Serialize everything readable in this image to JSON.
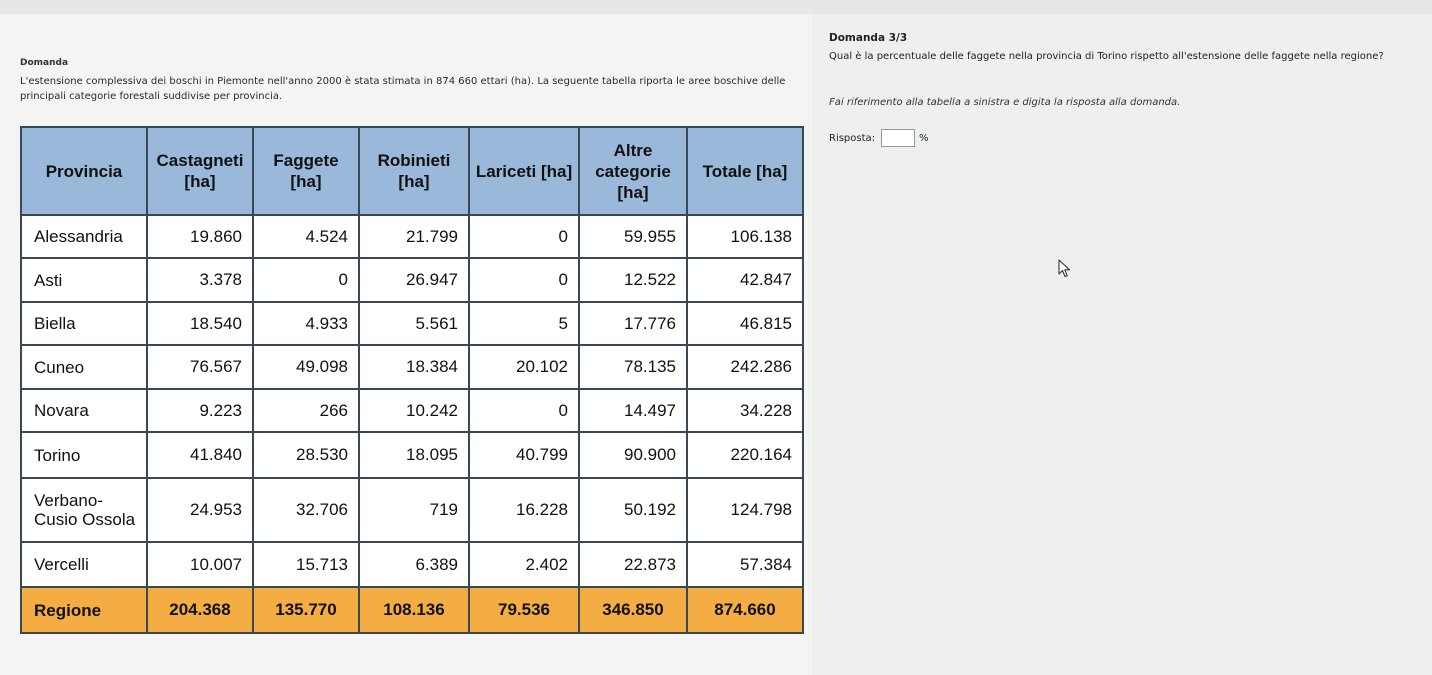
{
  "left": {
    "label": "Domanda",
    "intro": "L'estensione complessiva dei boschi in Piemonte nell'anno 2000 è stata stimata in  874 660 ettari (ha). La seguente tabella riporta le aree boschive delle principali categorie forestali suddivise per provincia.",
    "table": {
      "headers": [
        "Provincia",
        "Castagneti [ha]",
        "Faggete [ha]",
        "Robinieti [ha]",
        "Lariceti [ha]",
        "Altre categorie [ha]",
        "Totale [ha]"
      ],
      "rows": [
        [
          "Alessandria",
          "19.860",
          "4.524",
          "21.799",
          "0",
          "59.955",
          "106.138"
        ],
        [
          "Asti",
          "3.378",
          "0",
          "26.947",
          "0",
          "12.522",
          "42.847"
        ],
        [
          "Biella",
          "18.540",
          "4.933",
          "5.561",
          "5",
          "17.776",
          "46.815"
        ],
        [
          "Cuneo",
          "76.567",
          "49.098",
          "18.384",
          "20.102",
          "78.135",
          "242.286"
        ],
        [
          "Novara",
          "9.223",
          "266",
          "10.242",
          "0",
          "14.497",
          "34.228"
        ],
        [
          "Torino",
          "41.840",
          "28.530",
          "18.095",
          "40.799",
          "90.900",
          "220.164"
        ],
        [
          "Verbano-\nCusio Ossola",
          "24.953",
          "32.706",
          "719",
          "16.228",
          "50.192",
          "124.798"
        ],
        [
          "Vercelli",
          "10.007",
          "15.713",
          "6.389",
          "2.402",
          "22.873",
          "57.384"
        ]
      ],
      "total": [
        "Regione",
        "204.368",
        "135.770",
        "108.136",
        "79.536",
        "346.850",
        "874.660"
      ]
    },
    "colors": {
      "header_bg": "#9ab8d9",
      "total_bg": "#f4ad42",
      "border": "#3a4856"
    }
  },
  "right": {
    "header": "Domanda 3/3",
    "question": "Qual è la percentuale delle faggete nella provincia di Torino rispetto all'estensione delle faggete nella regione?",
    "hint": "Fai riferimento alla tabella a sinistra e digita la risposta alla domanda.",
    "answer_label": "Risposta:",
    "answer_value": "",
    "unit": "%"
  },
  "icons": {
    "cursor": "mouse-pointer-icon"
  }
}
